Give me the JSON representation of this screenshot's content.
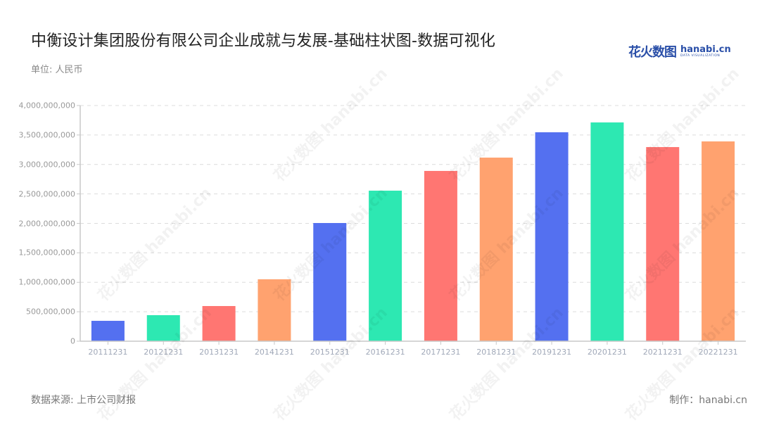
{
  "header": {
    "title": "中衡设计集团股份有限公司企业成就与发展-基础柱状图-数据可视化",
    "unit": "单位: 人民币",
    "logo_cn": "花火数图",
    "logo_en": "hanabi.cn",
    "logo_en_sub": "DATA VISUALIZATION"
  },
  "footer": {
    "source": "数据来源: 上市公司财报",
    "maker": "制作：hanabi.cn"
  },
  "watermark_text": "花火数图 hanabi.cn",
  "chart_data": {
    "type": "bar",
    "title": "中衡设计集团股份有限公司企业成就与发展-基础柱状图-数据可视化",
    "xlabel": "",
    "ylabel": "单位: 人民币",
    "categories": [
      "20111231",
      "20121231",
      "20131231",
      "20141231",
      "20151231",
      "20161231",
      "20171231",
      "20181231",
      "20191231",
      "20201231",
      "20211231",
      "20221231"
    ],
    "values": [
      346000000,
      442000000,
      597000000,
      1051000000,
      2006000000,
      2555000000,
      2890000000,
      3116000000,
      3546000000,
      3713000000,
      3295000000,
      3391000000
    ],
    "colors": [
      "#5470f0",
      "#2de8b2",
      "#ff7672",
      "#ffa26f",
      "#5470f0",
      "#2de8b2",
      "#ff7672",
      "#ffa26f",
      "#5470f0",
      "#2de8b2",
      "#ff7672",
      "#ffa26f"
    ],
    "ylim": [
      0,
      4000000000
    ],
    "yticks": [
      "0",
      "500,000,000",
      "1,000,000,000",
      "1,500,000,000",
      "2,000,000,000",
      "2,500,000,000",
      "3,000,000,000",
      "3,500,000,000",
      "4,000,000,000"
    ],
    "grid": true,
    "legend": "none"
  }
}
